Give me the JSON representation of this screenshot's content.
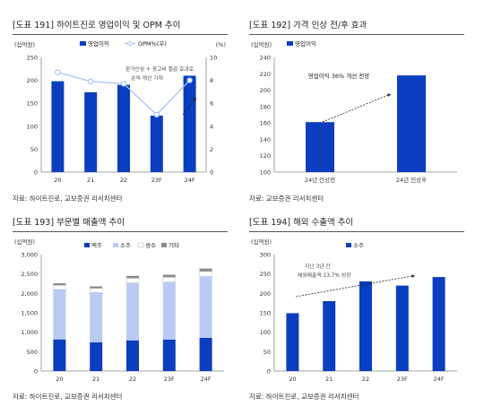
{
  "colors": {
    "primary": "#0b3dbf",
    "light": "#b9cbf4",
    "gray": "#8c8c8c",
    "line": "#a9c3f2",
    "frame": "#555555"
  },
  "panels": [
    {
      "title": "[도표 191] 하이트진로 영업이익 및 OPM 추이",
      "source": "자료: 하이트진로, 교보증권 리서치센터"
    },
    {
      "title": "[도표 192] 가격 인상 전/후 효과",
      "source": "자료: 교보증권 리서치센터"
    },
    {
      "title": "[도표 193] 부문별 매출액 추이",
      "source": "자료: 하이트진로, 교보증권 리서치센터"
    },
    {
      "title": "[도표 194] 해외 수출액 추이",
      "source": "자료: 하이트진로, 교보증권 리서치센터"
    }
  ],
  "chart_data": [
    {
      "type": "bar",
      "title": "[도표 191] 하이트진로 영업이익 및 OPM 추이",
      "unit_left": "(십억원)",
      "unit_right": "(%)",
      "categories": [
        "20",
        "21",
        "22",
        "23F",
        "24F"
      ],
      "series": [
        {
          "name": "영업이익",
          "type": "bar",
          "axis": "left",
          "values": [
            198,
            174,
            190,
            123,
            210
          ]
        },
        {
          "name": "OPM%(우)",
          "type": "line",
          "axis": "right",
          "values": [
            8.7,
            7.9,
            7.7,
            5.0,
            8.0
          ]
        }
      ],
      "ylim": [
        0,
        250
      ],
      "yticks": [
        0,
        50,
        100,
        150,
        200,
        250
      ],
      "y2lim": [
        0,
        10
      ],
      "y2ticks": [
        0,
        2,
        4,
        6,
        8,
        10
      ],
      "annotation": [
        "판가인상 + 광고비 절감 효과로",
        "순익 개선 기대"
      ],
      "legend": "top"
    },
    {
      "type": "bar",
      "title": "[도표 192] 가격 인상 전/후 효과",
      "unit_left": "(십억원)",
      "categories": [
        "24년 인상전",
        "24년 인상후"
      ],
      "series": [
        {
          "name": "영업이익",
          "values": [
            161,
            218
          ]
        }
      ],
      "ylim": [
        100,
        240
      ],
      "yticks": [
        100,
        120,
        140,
        160,
        180,
        200,
        220,
        240
      ],
      "annotation": "영업이익 36% 개선 전망",
      "legend": "top-left"
    },
    {
      "type": "bar",
      "stacked": true,
      "title": "[도표 193] 부문별 매출액 추이",
      "unit_left": "(십억원)",
      "categories": [
        "20",
        "21",
        "22",
        "23F",
        "24F"
      ],
      "series": [
        {
          "name": "맥주",
          "values": [
            815,
            740,
            790,
            810,
            855
          ]
        },
        {
          "name": "소주",
          "values": [
            1285,
            1280,
            1480,
            1480,
            1580
          ]
        },
        {
          "name": "생수",
          "values": [
            110,
            110,
            120,
            125,
            130
          ]
        },
        {
          "name": "기타",
          "values": [
            50,
            50,
            60,
            65,
            75
          ]
        }
      ],
      "ylim": [
        0,
        3000
      ],
      "yticks": [
        "0",
        "500",
        "1,000",
        "1,500",
        "2,000",
        "2,500",
        "3,000"
      ],
      "legend": "top"
    },
    {
      "type": "bar",
      "title": "[도표 194] 해외 수출액 추이",
      "unit_left": "(십억원)",
      "categories": [
        "20",
        "21",
        "22",
        "23F",
        "24F"
      ],
      "series": [
        {
          "name": "소주",
          "values": [
            149,
            180,
            231,
            220,
            242
          ]
        }
      ],
      "ylim": [
        0,
        300
      ],
      "yticks": [
        0,
        50,
        100,
        150,
        200,
        250,
        300
      ],
      "annotation": [
        "지난 3년 간",
        "해외매출액 13.7% 성장"
      ],
      "legend": "top"
    }
  ]
}
